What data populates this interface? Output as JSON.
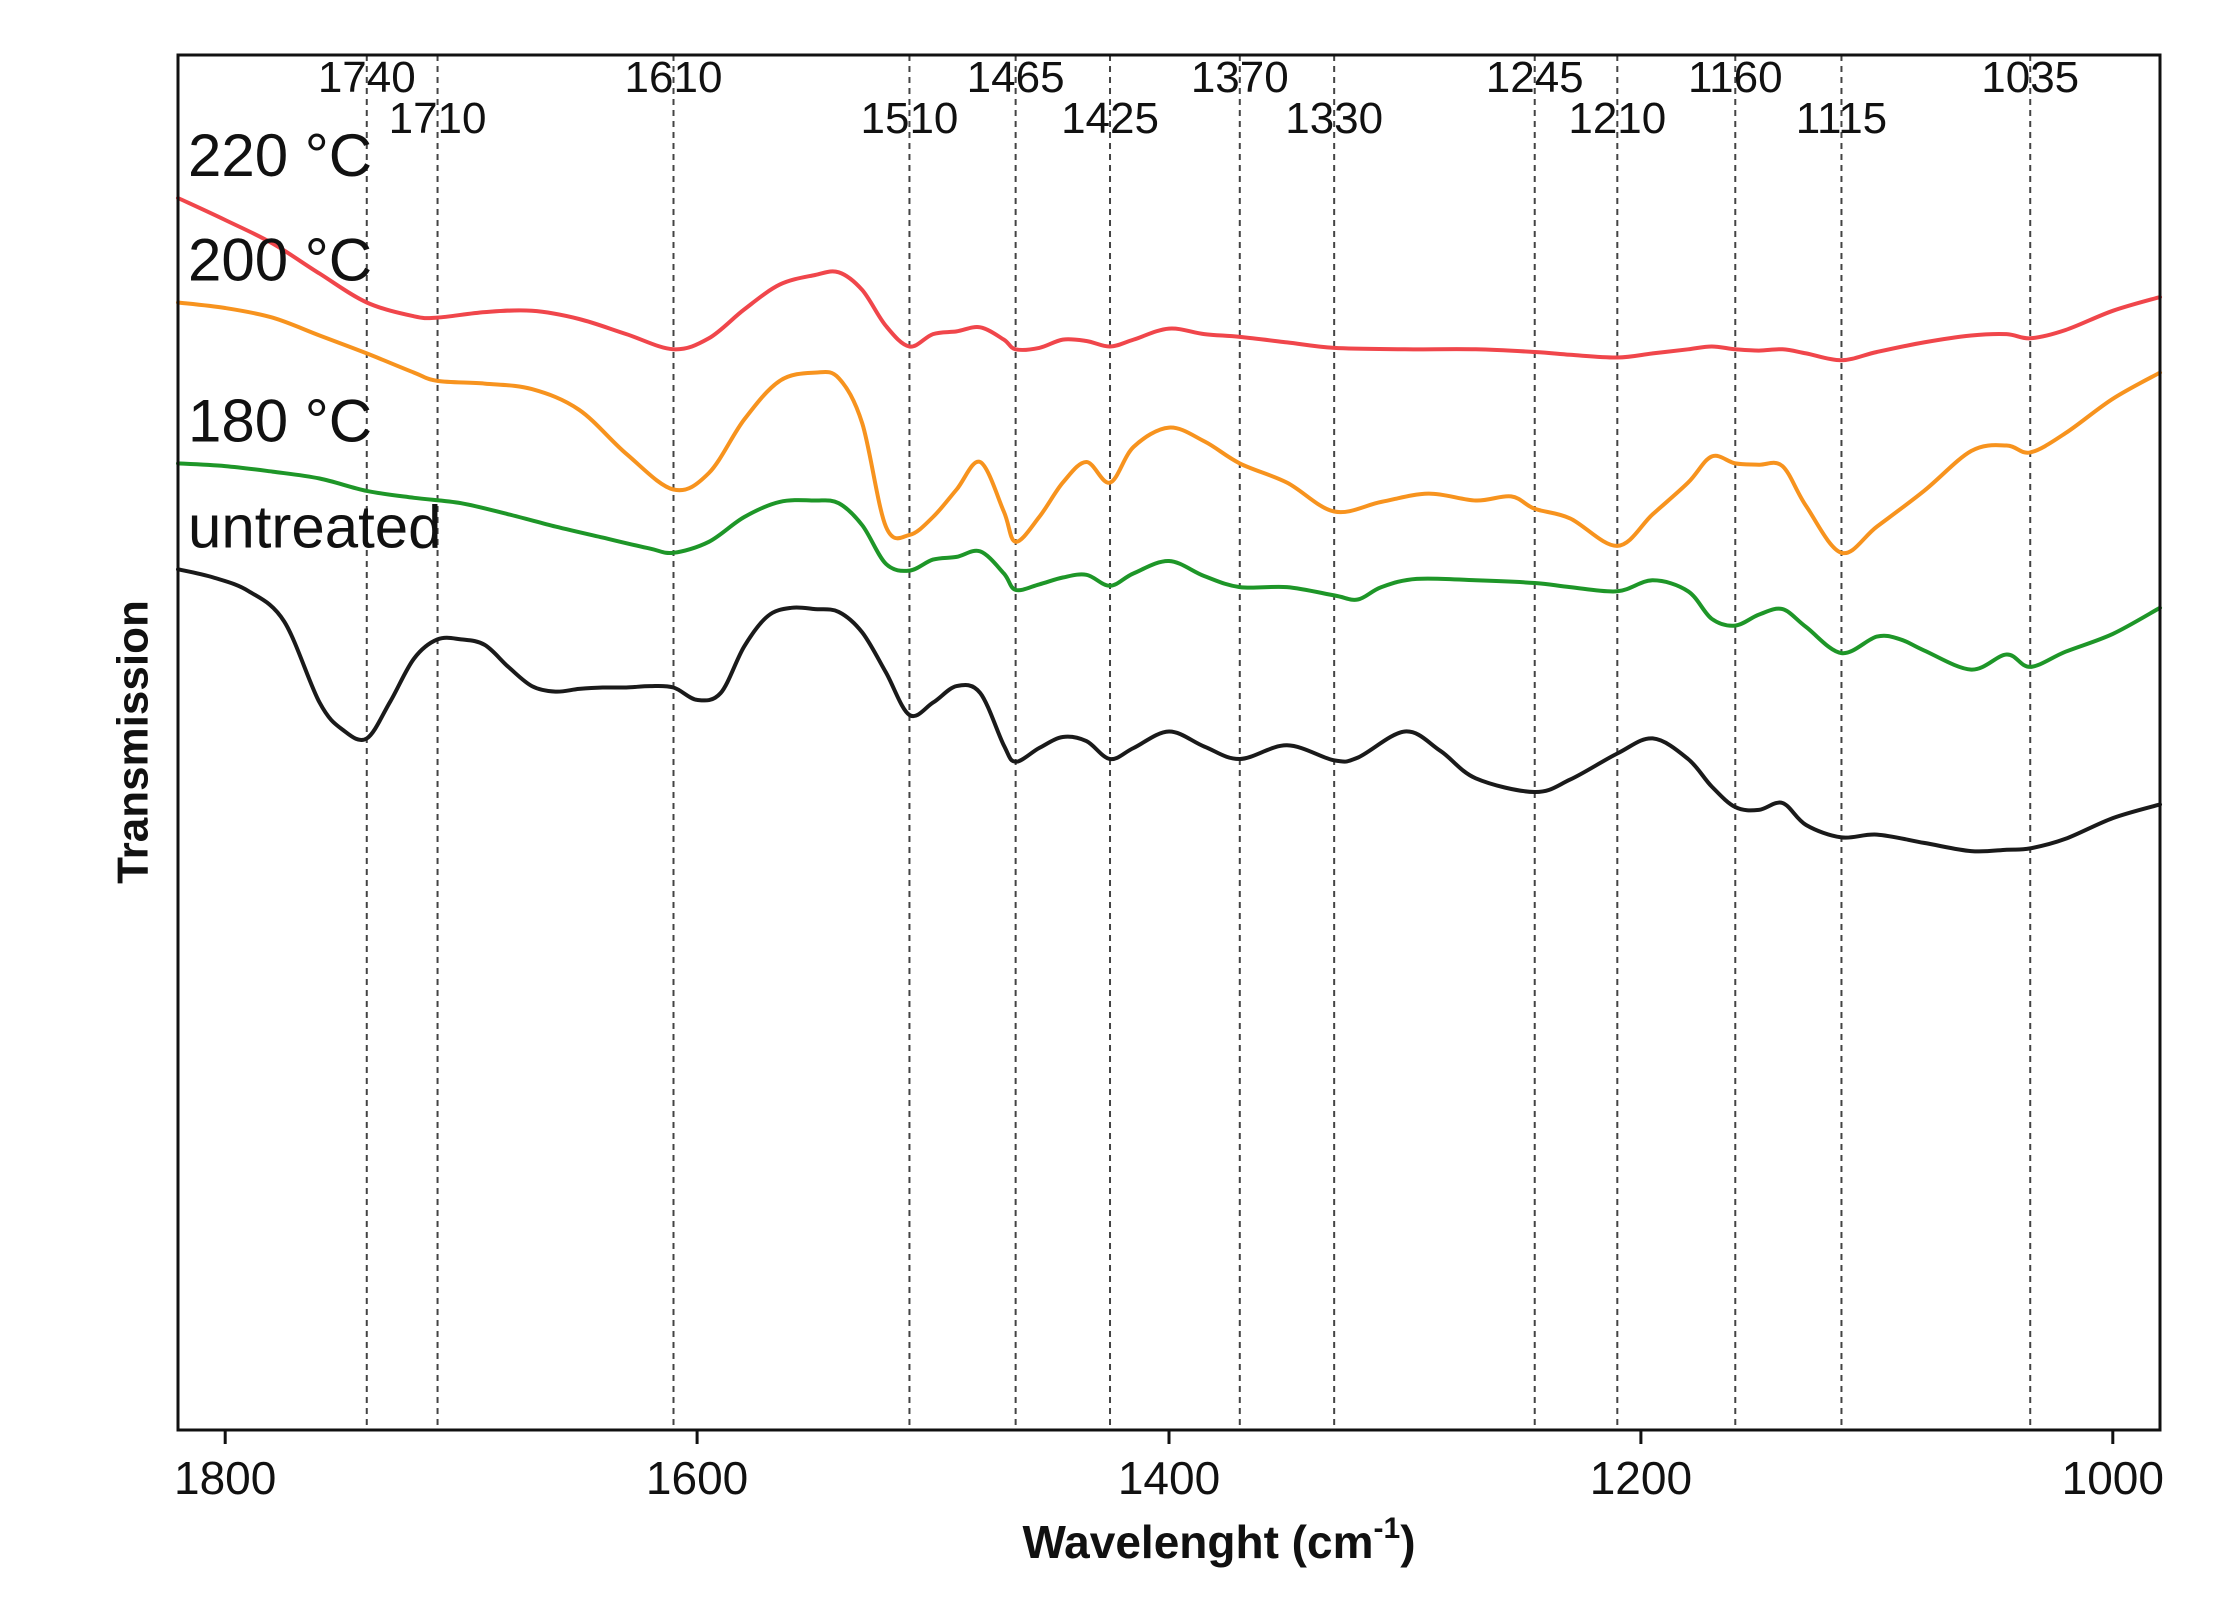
{
  "chart_data": {
    "type": "line",
    "title": "",
    "xlabel": "Wavelenght (cm",
    "xlabel_sup": "-1",
    "xlabel_close": ")",
    "ylabel": "Transmission",
    "xlim": [
      1820,
      980
    ],
    "x_reversed": true,
    "ylim": [
      0,
      100
    ],
    "grid": false,
    "legend": "inline labels at left",
    "x_ticks": [
      {
        "value": 1800,
        "label": "1800"
      },
      {
        "value": 1600,
        "label": "1600"
      },
      {
        "value": 1400,
        "label": "1400"
      },
      {
        "value": 1200,
        "label": "1200"
      },
      {
        "value": 1000,
        "label": "1000"
      }
    ],
    "reference_lines": [
      {
        "value": 1740,
        "label": "1740",
        "row": "upper"
      },
      {
        "value": 1710,
        "label": "1710",
        "row": "lower"
      },
      {
        "value": 1610,
        "label": "1610",
        "row": "upper"
      },
      {
        "value": 1510,
        "label": "1510",
        "row": "lower"
      },
      {
        "value": 1465,
        "label": "1465",
        "row": "upper"
      },
      {
        "value": 1425,
        "label": "1425",
        "row": "lower"
      },
      {
        "value": 1370,
        "label": "1370",
        "row": "upper"
      },
      {
        "value": 1330,
        "label": "1330",
        "row": "lower"
      },
      {
        "value": 1245,
        "label": "1245",
        "row": "upper"
      },
      {
        "value": 1210,
        "label": "1210",
        "row": "lower"
      },
      {
        "value": 1160,
        "label": "1160",
        "row": "upper"
      },
      {
        "value": 1115,
        "label": "1115",
        "row": "lower"
      },
      {
        "value": 1035,
        "label": "1035",
        "row": "upper"
      }
    ],
    "series": [
      {
        "name": "220 °C",
        "color": "#f0464b",
        "x": [
          1820,
          1800,
          1780,
          1760,
          1740,
          1720,
          1710,
          1690,
          1670,
          1650,
          1630,
          1610,
          1595,
          1580,
          1565,
          1550,
          1540,
          1530,
          1520,
          1510,
          1500,
          1490,
          1480,
          1470,
          1465,
          1455,
          1445,
          1435,
          1425,
          1415,
          1400,
          1385,
          1370,
          1350,
          1330,
          1300,
          1270,
          1245,
          1230,
          1210,
          1195,
          1180,
          1170,
          1160,
          1150,
          1140,
          1130,
          1115,
          1100,
          1080,
          1060,
          1045,
          1035,
          1020,
          1000,
          980
        ],
        "y": [
          89.6,
          88.0,
          86.3,
          84.1,
          82.0,
          81.0,
          80.9,
          81.3,
          81.4,
          80.8,
          79.7,
          78.6,
          79.4,
          81.5,
          83.3,
          84.0,
          84.2,
          82.9,
          80.3,
          78.8,
          79.7,
          79.9,
          80.2,
          79.3,
          78.6,
          78.7,
          79.3,
          79.2,
          78.8,
          79.3,
          80.1,
          79.7,
          79.5,
          79.1,
          78.7,
          78.6,
          78.6,
          78.4,
          78.2,
          78.0,
          78.3,
          78.6,
          78.8,
          78.6,
          78.5,
          78.6,
          78.3,
          77.8,
          78.4,
          79.1,
          79.6,
          79.7,
          79.4,
          80.0,
          81.4,
          82.4
        ]
      },
      {
        "name": "200 °C",
        "color": "#f7931e",
        "x": [
          1820,
          1800,
          1780,
          1760,
          1740,
          1720,
          1710,
          1690,
          1670,
          1650,
          1630,
          1610,
          1595,
          1580,
          1565,
          1550,
          1540,
          1530,
          1520,
          1510,
          1500,
          1490,
          1480,
          1470,
          1465,
          1455,
          1445,
          1435,
          1425,
          1415,
          1400,
          1385,
          1370,
          1350,
          1330,
          1310,
          1290,
          1270,
          1255,
          1245,
          1230,
          1210,
          1195,
          1180,
          1170,
          1160,
          1150,
          1140,
          1130,
          1115,
          1100,
          1080,
          1060,
          1045,
          1035,
          1020,
          1000,
          980
        ],
        "y": [
          82.0,
          81.6,
          80.9,
          79.6,
          78.3,
          76.9,
          76.3,
          76.1,
          75.7,
          74.2,
          71.0,
          68.4,
          69.6,
          73.5,
          76.3,
          76.9,
          76.5,
          73.2,
          65.7,
          65.1,
          66.4,
          68.4,
          70.4,
          66.8,
          64.6,
          66.4,
          68.9,
          70.4,
          68.9,
          71.5,
          72.9,
          71.9,
          70.3,
          68.9,
          66.8,
          67.5,
          68.1,
          67.6,
          67.9,
          67.0,
          66.3,
          64.3,
          66.6,
          68.9,
          70.8,
          70.3,
          70.2,
          70.1,
          67.2,
          63.8,
          65.7,
          68.3,
          71.2,
          71.6,
          71.1,
          72.5,
          75.0,
          76.9
        ]
      },
      {
        "name": "180 °C",
        "color": "#1e9628",
        "x": [
          1820,
          1800,
          1780,
          1760,
          1740,
          1720,
          1700,
          1680,
          1660,
          1640,
          1620,
          1610,
          1595,
          1580,
          1565,
          1550,
          1540,
          1530,
          1520,
          1510,
          1500,
          1490,
          1480,
          1470,
          1465,
          1455,
          1445,
          1435,
          1425,
          1415,
          1400,
          1385,
          1370,
          1350,
          1330,
          1320,
          1310,
          1295,
          1270,
          1245,
          1230,
          1210,
          1195,
          1180,
          1170,
          1160,
          1150,
          1140,
          1130,
          1115,
          1100,
          1090,
          1080,
          1060,
          1045,
          1035,
          1020,
          1000,
          980
        ],
        "y": [
          70.3,
          70.1,
          69.7,
          69.2,
          68.3,
          67.8,
          67.4,
          66.6,
          65.7,
          64.9,
          64.1,
          63.8,
          64.6,
          66.4,
          67.5,
          67.6,
          67.4,
          65.8,
          63.0,
          62.5,
          63.3,
          63.5,
          63.9,
          62.3,
          61.1,
          61.5,
          62.0,
          62.2,
          61.4,
          62.3,
          63.2,
          62.1,
          61.3,
          61.3,
          60.7,
          60.4,
          61.3,
          61.9,
          61.8,
          61.6,
          61.3,
          61.0,
          61.8,
          61.0,
          59.0,
          58.5,
          59.3,
          59.7,
          58.4,
          56.5,
          57.7,
          57.5,
          56.7,
          55.3,
          56.4,
          55.5,
          56.6,
          57.9,
          59.8
        ]
      },
      {
        "name": "untreated",
        "color": "#1a1a1a",
        "x": [
          1820,
          1805,
          1790,
          1775,
          1760,
          1750,
          1740,
          1730,
          1720,
          1710,
          1700,
          1690,
          1680,
          1670,
          1660,
          1650,
          1640,
          1630,
          1620,
          1610,
          1600,
          1590,
          1580,
          1570,
          1560,
          1550,
          1540,
          1530,
          1520,
          1510,
          1500,
          1490,
          1480,
          1470,
          1465,
          1455,
          1445,
          1435,
          1425,
          1415,
          1400,
          1385,
          1370,
          1350,
          1330,
          1320,
          1300,
          1285,
          1270,
          1245,
          1230,
          1210,
          1195,
          1180,
          1170,
          1160,
          1150,
          1140,
          1130,
          1115,
          1100,
          1080,
          1060,
          1045,
          1035,
          1020,
          1000,
          980
        ],
        "y": [
          62.6,
          62.0,
          61.0,
          58.8,
          52.9,
          50.9,
          50.3,
          53.0,
          56.1,
          57.5,
          57.5,
          57.1,
          55.5,
          54.1,
          53.7,
          53.9,
          54.0,
          54.0,
          54.1,
          54.0,
          53.1,
          53.6,
          57.0,
          59.2,
          59.8,
          59.7,
          59.5,
          58.0,
          55.1,
          52.0,
          52.9,
          54.1,
          53.6,
          49.8,
          48.6,
          49.6,
          50.4,
          50.1,
          48.8,
          49.6,
          50.8,
          49.7,
          48.8,
          49.8,
          48.7,
          48.9,
          50.8,
          49.4,
          47.4,
          46.4,
          47.3,
          49.2,
          50.3,
          48.8,
          46.8,
          45.3,
          45.1,
          45.6,
          44.0,
          43.1,
          43.3,
          42.7,
          42.1,
          42.2,
          42.3,
          43.0,
          44.5,
          45.5
        ]
      }
    ]
  }
}
